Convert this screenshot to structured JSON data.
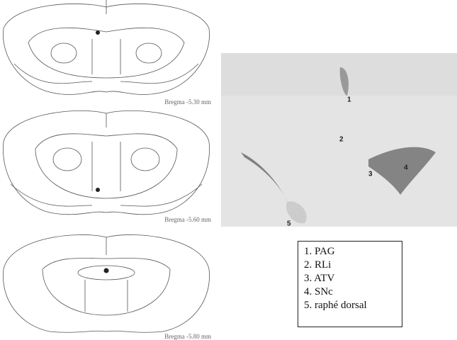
{
  "atlas": {
    "captions": [
      "Bregma -5.30 mm",
      "Bregma -5.60 mm",
      "Bregma -5.80 mm"
    ]
  },
  "photo": {
    "labels": [
      "1",
      "2",
      "3",
      "4",
      "5"
    ]
  },
  "legend": {
    "items": [
      "1. PAG",
      "2. RLi",
      "3. ATV",
      "4. SNc",
      "5. raphé dorsal"
    ]
  }
}
